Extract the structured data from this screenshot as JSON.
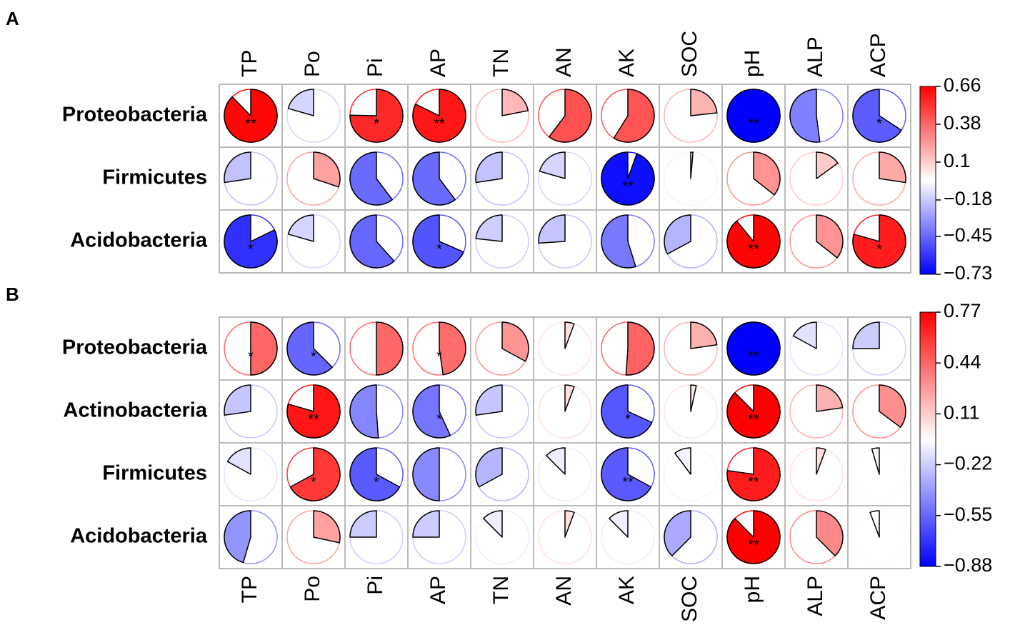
{
  "chart_data": [
    {
      "type": "corrplot",
      "label": "A",
      "column_labels_position": "top",
      "rows": [
        "Proteobacteria",
        "Firmicutes",
        "Acidobacteria"
      ],
      "columns": [
        "TP",
        "Po",
        "Pi",
        "AP",
        "TN",
        "AN",
        "AK",
        "SOC",
        "pH",
        "ALP",
        "ACP"
      ],
      "values": [
        [
          0.64,
          -0.15,
          0.55,
          0.6,
          0.16,
          0.44,
          0.43,
          0.17,
          -0.73,
          -0.38,
          -0.48
        ],
        [
          -0.2,
          0.22,
          -0.44,
          -0.44,
          -0.2,
          -0.15,
          -0.69,
          0.01,
          0.26,
          0.11,
          0.2
        ],
        [
          -0.6,
          -0.15,
          -0.45,
          -0.5,
          -0.17,
          -0.19,
          -0.4,
          -0.24,
          0.65,
          0.26,
          0.58
        ]
      ],
      "significance": [
        [
          "**",
          null,
          "*",
          "**",
          null,
          null,
          null,
          null,
          "**",
          null,
          "*"
        ],
        [
          null,
          null,
          null,
          null,
          null,
          null,
          "**",
          null,
          null,
          null,
          null
        ],
        [
          "*",
          null,
          null,
          "*",
          null,
          null,
          null,
          null,
          "**",
          null,
          "*"
        ]
      ],
      "colors": [
        "#0000ff",
        "#ffffff",
        "#ff0000"
      ],
      "clim": [
        -0.73,
        0.66
      ],
      "cticks": [
        0.66,
        0.38,
        0.1,
        {
          "value": -0.18,
          "label": "−0.18"
        },
        {
          "value": -0.45,
          "label": "−0.45"
        },
        {
          "value": -0.73,
          "label": "−0.73"
        }
      ]
    },
    {
      "type": "corrplot",
      "label": "B",
      "column_labels_position": "bottom",
      "rows": [
        "Proteobacteria",
        "Actinobacteria",
        "Firmicutes",
        "Acidobacteria"
      ],
      "columns": [
        "TP",
        "Po",
        "Pi",
        "AP",
        "TN",
        "AN",
        "AK",
        "SOC",
        "pH",
        "ALP",
        "ACP"
      ],
      "values": [
        [
          0.44,
          -0.55,
          0.44,
          0.42,
          0.29,
          0.05,
          0.45,
          0.2,
          -0.88,
          -0.15,
          -0.22
        ],
        [
          -0.24,
          0.7,
          -0.45,
          -0.5,
          -0.24,
          0.05,
          -0.6,
          0.03,
          0.77,
          0.2,
          0.31
        ],
        [
          -0.15,
          0.59,
          -0.59,
          -0.44,
          -0.29,
          -0.11,
          -0.59,
          -0.09,
          0.68,
          0.05,
          -0.04
        ],
        [
          -0.4,
          0.25,
          -0.22,
          -0.22,
          -0.11,
          0.05,
          -0.11,
          -0.33,
          0.77,
          0.33,
          -0.05
        ]
      ],
      "significance": [
        [
          "*",
          "*",
          null,
          "*",
          null,
          null,
          null,
          null,
          "**",
          null,
          null
        ],
        [
          null,
          "**",
          null,
          "*",
          null,
          null,
          "*",
          null,
          "**",
          null,
          null
        ],
        [
          null,
          "*",
          "*",
          null,
          null,
          null,
          "**",
          null,
          "**",
          null,
          null
        ],
        [
          null,
          null,
          null,
          null,
          null,
          null,
          null,
          null,
          "**",
          null,
          null
        ]
      ],
      "colors": [
        "#0000ff",
        "#ffffff",
        "#ff0000"
      ],
      "clim": [
        -0.88,
        0.77
      ],
      "cticks": [
        0.77,
        0.44,
        0.11,
        {
          "value": -0.22,
          "label": "−0.22"
        },
        {
          "value": -0.55,
          "label": "−0.55"
        },
        {
          "value": -0.88,
          "label": "−0.88"
        }
      ]
    }
  ]
}
